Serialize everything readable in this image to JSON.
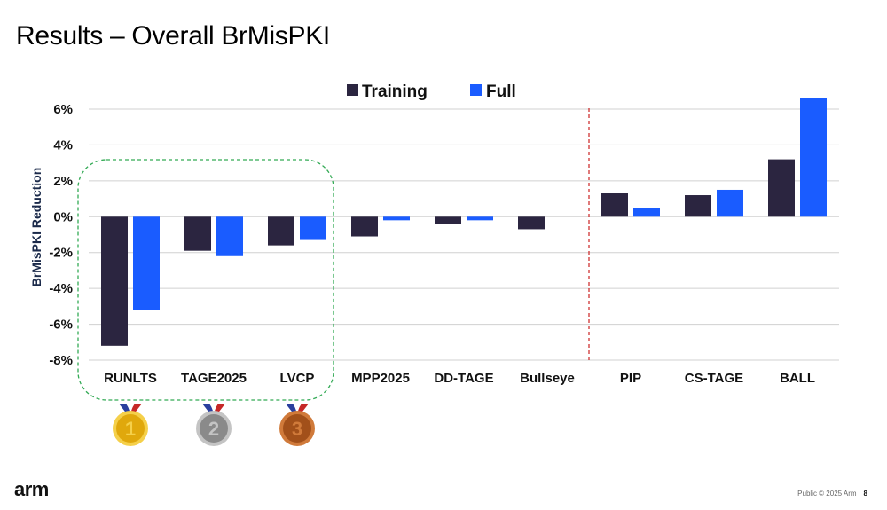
{
  "slide": {
    "title": "Results – Overall BrMisPKI",
    "logo": "arm",
    "footer_text": "Public © 2025 Arm",
    "page_number": "8"
  },
  "medals": [
    {
      "label": "1",
      "color": "#e0a80c",
      "ring": "#f5d04a"
    },
    {
      "label": "2",
      "color": "#8a8a8a",
      "ring": "#c4c4c4"
    },
    {
      "label": "3",
      "color": "#a2501a",
      "ring": "#d07a3a"
    }
  ],
  "colors": {
    "training": "#2b2540",
    "full": "#1a5cff",
    "divider": "#cc2222",
    "highlight_box": "#33aa55",
    "grid": "#d0d0d0"
  },
  "chart_data": {
    "type": "bar",
    "title": "",
    "xlabel": "",
    "ylabel": "BrMisPKI Reduction",
    "ylim": [
      -8,
      6
    ],
    "yticks": [
      6,
      4,
      2,
      0,
      -2,
      -4,
      -6,
      -8
    ],
    "ytick_labels": [
      "6%",
      "4%",
      "2%",
      "0%",
      "-2%",
      "-4%",
      "-6%",
      "-8%"
    ],
    "categories": [
      "RUNLTS",
      "TAGE2025",
      "LVCP",
      "MPP2025",
      "DD-TAGE",
      "Bullseye",
      "PIP",
      "CS-TAGE",
      "BALL"
    ],
    "series": [
      {
        "name": "Training",
        "values": [
          -7.2,
          -1.9,
          -1.6,
          -1.1,
          -0.4,
          -0.7,
          1.3,
          1.2,
          3.2
        ]
      },
      {
        "name": "Full",
        "values": [
          -5.2,
          -2.2,
          -1.3,
          -0.2,
          -0.2,
          null,
          0.5,
          1.5,
          6.6
        ]
      }
    ],
    "legend": "top-center",
    "grid": true,
    "highlighted_categories": [
      "RUNLTS",
      "TAGE2025",
      "LVCP"
    ],
    "divider_after_category": "Bullseye"
  }
}
